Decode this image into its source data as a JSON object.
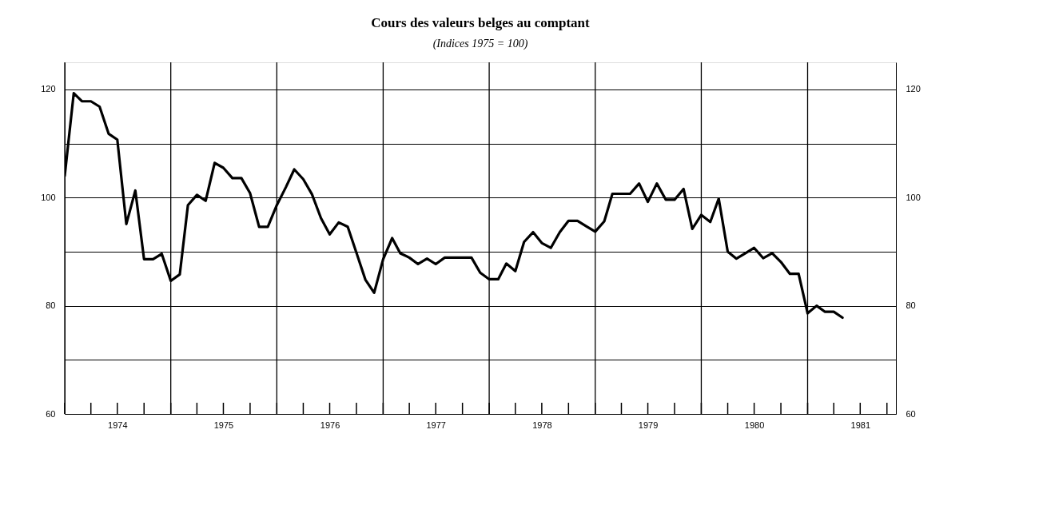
{
  "chart_data": {
    "type": "line",
    "title": "Cours des valeurs belges au comptant",
    "subtitle": "(Indices 1975 = 100)",
    "x": [
      "1974-01",
      "1974-02",
      "1974-03",
      "1974-04",
      "1974-05",
      "1974-06",
      "1974-07",
      "1974-08",
      "1974-09",
      "1974-10",
      "1974-11",
      "1974-12",
      "1975-01",
      "1975-02",
      "1975-03",
      "1975-04",
      "1975-05",
      "1975-06",
      "1975-07",
      "1975-08",
      "1975-09",
      "1975-10",
      "1975-11",
      "1975-12",
      "1976-01",
      "1976-02",
      "1976-03",
      "1976-04",
      "1976-05",
      "1976-06",
      "1976-07",
      "1976-08",
      "1976-09",
      "1976-10",
      "1976-11",
      "1976-12",
      "1977-01",
      "1977-02",
      "1977-03",
      "1977-04",
      "1977-05",
      "1977-06",
      "1977-07",
      "1977-08",
      "1977-09",
      "1977-10",
      "1977-11",
      "1977-12",
      "1978-01",
      "1978-02",
      "1978-03",
      "1978-04",
      "1978-05",
      "1978-06",
      "1978-07",
      "1978-08",
      "1978-09",
      "1978-10",
      "1978-11",
      "1978-12",
      "1979-01",
      "1979-02",
      "1979-03",
      "1979-04",
      "1979-05",
      "1979-06",
      "1979-07",
      "1979-08",
      "1979-09",
      "1979-10",
      "1979-11",
      "1979-12",
      "1980-01",
      "1980-02",
      "1980-03",
      "1980-04",
      "1980-05",
      "1980-06",
      "1980-07",
      "1980-08",
      "1980-09",
      "1980-10",
      "1980-11",
      "1980-12",
      "1981-01",
      "1981-02",
      "1981-03",
      "1981-04",
      "1981-05"
    ],
    "series": [
      {
        "color": "#000000",
        "values": [
          104,
          119.3,
          117.8,
          117.8,
          116.8,
          111.8,
          110.7,
          95.1,
          101.3,
          88.6,
          88.6,
          89.6,
          84.6,
          85.8,
          98.6,
          100.5,
          99.4,
          106.4,
          105.5,
          103.6,
          103.6,
          100.8,
          94.6,
          94.6,
          98.6,
          101.9,
          105.2,
          103.4,
          100.6,
          96.2,
          93.2,
          95.4,
          94.6,
          89.8,
          84.8,
          82.4,
          88.6,
          92.5,
          89.7,
          88.9,
          87.7,
          88.7,
          87.7,
          88.9,
          88.9,
          88.9,
          88.9,
          86.1,
          84.9,
          84.9,
          87.8,
          86.4,
          91.8,
          93.6,
          91.6,
          90.7,
          93.6,
          95.7,
          95.7,
          94.7,
          93.7,
          95.6,
          100.7,
          100.7,
          100.7,
          102.6,
          99.2,
          102.6,
          99.6,
          99.6,
          101.6,
          94.2,
          96.8,
          95.5,
          99.8,
          90.0,
          88.7,
          89.7,
          90.7,
          88.8,
          89.7,
          88.1,
          85.9,
          85.9,
          78.6,
          80.0,
          78.9,
          78.9,
          77.8
        ]
      }
    ],
    "xlim": [
      "1974-01",
      "1981-11"
    ],
    "xticks": [
      {
        "value": "1974-01",
        "label": null
      },
      {
        "value": "1974-04",
        "label": null
      },
      {
        "value": "1974-07",
        "label": "1974"
      },
      {
        "value": "1974-10",
        "label": null
      },
      {
        "value": "1975-01",
        "label": null
      },
      {
        "value": "1975-04",
        "label": null
      },
      {
        "value": "1975-07",
        "label": "1975"
      },
      {
        "value": "1975-10",
        "label": null
      },
      {
        "value": "1976-01",
        "label": null
      },
      {
        "value": "1976-04",
        "label": null
      },
      {
        "value": "1976-07",
        "label": "1976"
      },
      {
        "value": "1976-10",
        "label": null
      },
      {
        "value": "1977-01",
        "label": null
      },
      {
        "value": "1977-04",
        "label": null
      },
      {
        "value": "1977-07",
        "label": "1977"
      },
      {
        "value": "1977-10",
        "label": null
      },
      {
        "value": "1978-01",
        "label": null
      },
      {
        "value": "1978-04",
        "label": null
      },
      {
        "value": "1978-07",
        "label": "1978"
      },
      {
        "value": "1978-10",
        "label": null
      },
      {
        "value": "1979-01",
        "label": null
      },
      {
        "value": "1979-04",
        "label": null
      },
      {
        "value": "1979-07",
        "label": "1979"
      },
      {
        "value": "1979-10",
        "label": null
      },
      {
        "value": "1980-01",
        "label": null
      },
      {
        "value": "1980-04",
        "label": null
      },
      {
        "value": "1980-07",
        "label": "1980"
      },
      {
        "value": "1980-10",
        "label": null
      },
      {
        "value": "1981-01",
        "label": null
      },
      {
        "value": "1981-04",
        "label": null
      },
      {
        "value": "1981-07",
        "label": "1981"
      },
      {
        "value": "1981-10",
        "label": null
      }
    ],
    "ylim": [
      60,
      125
    ],
    "yticks": [
      60,
      {
        "value": 70,
        "label": null
      },
      80,
      {
        "value": 90,
        "label": null
      },
      100,
      {
        "value": 110,
        "label": null
      },
      120
    ],
    "y2lim": [
      60,
      125
    ],
    "y2ticks": [
      60,
      80,
      100,
      120
    ],
    "grid": true,
    "line_style": "solid",
    "marker": "none"
  }
}
